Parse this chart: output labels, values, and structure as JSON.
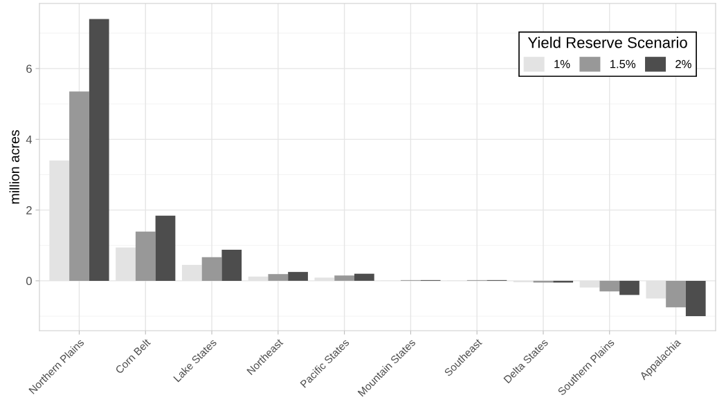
{
  "chart_data": {
    "type": "bar",
    "ylabel": "million acres",
    "legend_title": "Yield Reserve Scenario",
    "categories": [
      "Northern Plains",
      "Corn Belt",
      "Lake States",
      "Northeast",
      "Pacific States",
      "Mountain States",
      "Southeast",
      "Delta States",
      "Southern Plains",
      "Appalachia"
    ],
    "series": [
      {
        "name": "1%",
        "color": "#e3e3e3",
        "values": [
          3.4,
          0.94,
          0.45,
          0.12,
          0.09,
          0.01,
          0.01,
          -0.04,
          -0.19,
          -0.5
        ]
      },
      {
        "name": "1.5%",
        "color": "#989898",
        "values": [
          5.35,
          1.39,
          0.67,
          0.19,
          0.15,
          0.02,
          0.02,
          -0.05,
          -0.3,
          -0.75
        ]
      },
      {
        "name": "2%",
        "color": "#4d4d4d",
        "values": [
          7.4,
          1.84,
          0.88,
          0.25,
          0.2,
          0.02,
          0.02,
          -0.05,
          -0.4,
          -1.0
        ]
      }
    ],
    "ylim": [
      -1.41,
      7.84
    ],
    "yticks": [
      0,
      2,
      4,
      6
    ],
    "grid": true,
    "legend": "top right"
  }
}
